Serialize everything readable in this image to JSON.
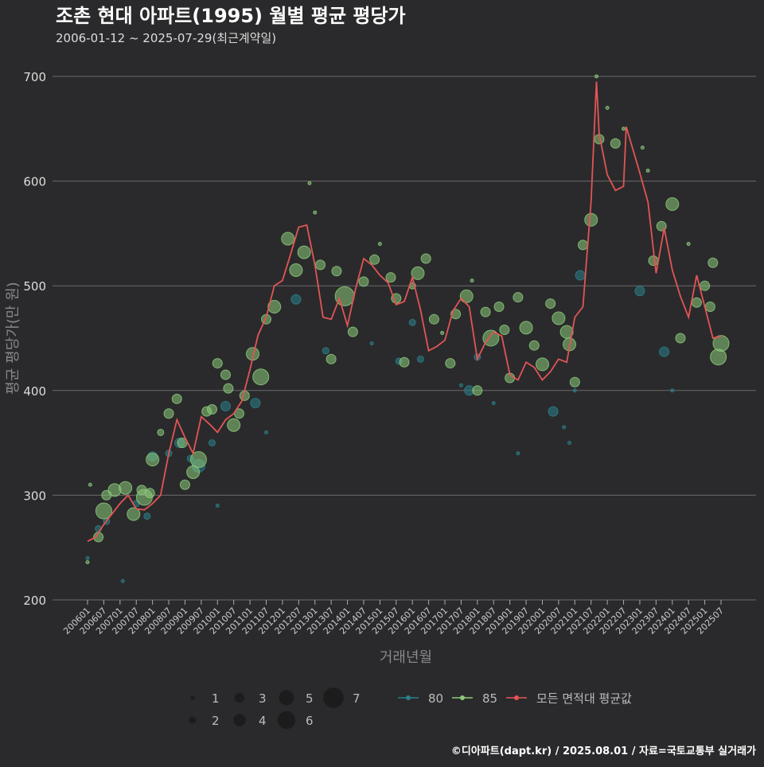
{
  "chart_data": {
    "type": "scatter",
    "title": "조촌 현대 아파트(1995) 월별 평균 평당가",
    "subtitle": "2006-01-12 ~ 2025-07-29(최근계약일)",
    "xlabel": "거래년월",
    "ylabel": "평균 평당가(만 원)",
    "ylim": [
      200,
      700
    ],
    "yticks": [
      200,
      300,
      400,
      500,
      600,
      700
    ],
    "xticks": [
      "200601",
      "200607",
      "200701",
      "200707",
      "200801",
      "200807",
      "200901",
      "200907",
      "201001",
      "201007",
      "201101",
      "201107",
      "201201",
      "201207",
      "201301",
      "201307",
      "201401",
      "201407",
      "201501",
      "201507",
      "201601",
      "201607",
      "201701",
      "201707",
      "201801",
      "201807",
      "201901",
      "201907",
      "202001",
      "202007",
      "202101",
      "202107",
      "202201",
      "202207",
      "202301",
      "202307",
      "202401",
      "202407",
      "202501",
      "202507"
    ],
    "legend": {
      "size_title": "",
      "sizes": [
        1,
        2,
        3,
        4,
        5,
        6,
        7
      ],
      "series": [
        {
          "name": "80",
          "color": "#2a7f8a"
        },
        {
          "name": "85",
          "color": "#8bc97a"
        },
        {
          "name": "모든 면적대 평균값",
          "color": "#e25555"
        }
      ]
    },
    "series": [
      {
        "name": "모든 면적대 평균값",
        "type": "line",
        "color": "#e25555",
        "points": [
          [
            "200601",
            256
          ],
          [
            "200604",
            260
          ],
          [
            "200607",
            272
          ],
          [
            "200701",
            292
          ],
          [
            "200704",
            300
          ],
          [
            "200707",
            287
          ],
          [
            "200710",
            286
          ],
          [
            "200801",
            292
          ],
          [
            "200804",
            300
          ],
          [
            "200807",
            340
          ],
          [
            "200810",
            372
          ],
          [
            "200901",
            355
          ],
          [
            "200904",
            340
          ],
          [
            "200907",
            375
          ],
          [
            "200910",
            368
          ],
          [
            "201001",
            360
          ],
          [
            "201004",
            372
          ],
          [
            "201007",
            378
          ],
          [
            "201010",
            390
          ],
          [
            "201101",
            420
          ],
          [
            "201104",
            453
          ],
          [
            "201107",
            470
          ],
          [
            "201110",
            500
          ],
          [
            "201201",
            505
          ],
          [
            "201204",
            530
          ],
          [
            "201207",
            556
          ],
          [
            "201210",
            558
          ],
          [
            "201301",
            520
          ],
          [
            "201304",
            470
          ],
          [
            "201307",
            468
          ],
          [
            "201310",
            488
          ],
          [
            "201401",
            462
          ],
          [
            "201404",
            497
          ],
          [
            "201407",
            526
          ],
          [
            "201410",
            520
          ],
          [
            "201501",
            510
          ],
          [
            "201504",
            503
          ],
          [
            "201507",
            482
          ],
          [
            "201510",
            485
          ],
          [
            "201601",
            508
          ],
          [
            "201604",
            477
          ],
          [
            "201607",
            438
          ],
          [
            "201610",
            442
          ],
          [
            "201701",
            448
          ],
          [
            "201704",
            476
          ],
          [
            "201707",
            488
          ],
          [
            "201710",
            480
          ],
          [
            "201801",
            430
          ],
          [
            "201804",
            446
          ],
          [
            "201807",
            456
          ],
          [
            "201810",
            452
          ],
          [
            "201901",
            415
          ],
          [
            "201904",
            410
          ],
          [
            "201907",
            427
          ],
          [
            "201910",
            422
          ],
          [
            "202001",
            410
          ],
          [
            "202004",
            418
          ],
          [
            "202007",
            430
          ],
          [
            "202010",
            427
          ],
          [
            "202101",
            470
          ],
          [
            "202104",
            480
          ],
          [
            "202107",
            580
          ],
          [
            "202109",
            695
          ],
          [
            "202110",
            645
          ],
          [
            "202201",
            606
          ],
          [
            "202204",
            591
          ],
          [
            "202207",
            595
          ],
          [
            "202208",
            652
          ],
          [
            "202301",
            608
          ],
          [
            "202304",
            580
          ],
          [
            "202307",
            512
          ],
          [
            "202310",
            555
          ],
          [
            "202401",
            515
          ],
          [
            "202404",
            490
          ],
          [
            "202407",
            470
          ],
          [
            "202410",
            510
          ],
          [
            "202501",
            480
          ],
          [
            "202504",
            450
          ],
          [
            "202507",
            452
          ]
        ]
      },
      {
        "name": "80",
        "type": "scatter",
        "color": "#2a7f8a",
        "points": [
          [
            "200601",
            240,
            1
          ],
          [
            "200605",
            268,
            2
          ],
          [
            "200608",
            275,
            2
          ],
          [
            "200702",
            218,
            1
          ],
          [
            "200707",
            292,
            2
          ],
          [
            "200711",
            280,
            2
          ],
          [
            "200801",
            337,
            3
          ],
          [
            "200807",
            340,
            2
          ],
          [
            "200811",
            350,
            3
          ],
          [
            "200903",
            335,
            2
          ],
          [
            "200906",
            328,
            4
          ],
          [
            "200911",
            350,
            2
          ],
          [
            "201001",
            290,
            1
          ],
          [
            "201004",
            385,
            3
          ],
          [
            "201103",
            388,
            3
          ],
          [
            "201107",
            360,
            1
          ],
          [
            "201206",
            487,
            3
          ],
          [
            "201305",
            438,
            2
          ],
          [
            "201410",
            445,
            1
          ],
          [
            "201508",
            428,
            2
          ],
          [
            "201601",
            465,
            2
          ],
          [
            "201604",
            430,
            2
          ],
          [
            "201707",
            405,
            1
          ],
          [
            "201710",
            400,
            3
          ],
          [
            "201801",
            432,
            2
          ],
          [
            "201807",
            388,
            1
          ],
          [
            "201904",
            340,
            1
          ],
          [
            "202005",
            380,
            3
          ],
          [
            "202009",
            365,
            1
          ],
          [
            "202011",
            350,
            1
          ],
          [
            "202101",
            400,
            1
          ],
          [
            "202103",
            510,
            3
          ],
          [
            "202301",
            495,
            3
          ],
          [
            "202310",
            437,
            3
          ],
          [
            "202401",
            400,
            1
          ]
        ]
      },
      {
        "name": "85",
        "type": "scatter",
        "color": "#8bc97a",
        "points": [
          [
            "200601",
            236,
            1
          ],
          [
            "200602",
            310,
            1
          ],
          [
            "200605",
            260,
            3
          ],
          [
            "200607",
            285,
            5
          ],
          [
            "200608",
            300,
            3
          ],
          [
            "200611",
            305,
            4
          ],
          [
            "200703",
            307,
            4
          ],
          [
            "200706",
            282,
            4
          ],
          [
            "200709",
            305,
            3
          ],
          [
            "200710",
            298,
            5
          ],
          [
            "200712",
            302,
            3
          ],
          [
            "200801",
            334,
            4
          ],
          [
            "200804",
            360,
            2
          ],
          [
            "200807",
            378,
            3
          ],
          [
            "200810",
            392,
            3
          ],
          [
            "200812",
            350,
            3
          ],
          [
            "200901",
            310,
            3
          ],
          [
            "200904",
            322,
            4
          ],
          [
            "200906",
            334,
            5
          ],
          [
            "200909",
            380,
            3
          ],
          [
            "200911",
            382,
            3
          ],
          [
            "201001",
            426,
            3
          ],
          [
            "201004",
            415,
            3
          ],
          [
            "201005",
            402,
            3
          ],
          [
            "201007",
            367,
            4
          ],
          [
            "201009",
            378,
            3
          ],
          [
            "201011",
            395,
            3
          ],
          [
            "201102",
            435,
            4
          ],
          [
            "201105",
            413,
            5
          ],
          [
            "201107",
            468,
            3
          ],
          [
            "201110",
            480,
            4
          ],
          [
            "201203",
            545,
            4
          ],
          [
            "201206",
            515,
            4
          ],
          [
            "201209",
            532,
            4
          ],
          [
            "201211",
            598,
            1
          ],
          [
            "201301",
            570,
            1
          ],
          [
            "201303",
            520,
            3
          ],
          [
            "201307",
            430,
            3
          ],
          [
            "201309",
            514,
            3
          ],
          [
            "201312",
            490,
            6
          ],
          [
            "201403",
            456,
            3
          ],
          [
            "201407",
            504,
            3
          ],
          [
            "201411",
            525,
            3
          ],
          [
            "201501",
            540,
            1
          ],
          [
            "201505",
            508,
            3
          ],
          [
            "201507",
            488,
            3
          ],
          [
            "201510",
            427,
            3
          ],
          [
            "201601",
            500,
            2
          ],
          [
            "201603",
            512,
            4
          ],
          [
            "201606",
            526,
            3
          ],
          [
            "201609",
            468,
            3
          ],
          [
            "201612",
            455,
            1
          ],
          [
            "201703",
            426,
            3
          ],
          [
            "201705",
            473,
            3
          ],
          [
            "201709",
            490,
            4
          ],
          [
            "201711",
            505,
            1
          ],
          [
            "201801",
            400,
            3
          ],
          [
            "201804",
            475,
            3
          ],
          [
            "201806",
            450,
            5
          ],
          [
            "201809",
            480,
            3
          ],
          [
            "201811",
            458,
            3
          ],
          [
            "201901",
            412,
            3
          ],
          [
            "201904",
            489,
            3
          ],
          [
            "201907",
            460,
            4
          ],
          [
            "201910",
            443,
            3
          ],
          [
            "202001",
            425,
            4
          ],
          [
            "202004",
            483,
            3
          ],
          [
            "202007",
            469,
            4
          ],
          [
            "202010",
            456,
            4
          ],
          [
            "202011",
            444,
            4
          ],
          [
            "202101",
            408,
            3
          ],
          [
            "202104",
            539,
            3
          ],
          [
            "202107",
            563,
            4
          ],
          [
            "202109",
            700,
            1
          ],
          [
            "202110",
            640,
            3
          ],
          [
            "202201",
            670,
            1
          ],
          [
            "202204",
            636,
            3
          ],
          [
            "202207",
            650,
            1
          ],
          [
            "202302",
            632,
            1
          ],
          [
            "202304",
            610,
            1
          ],
          [
            "202306",
            524,
            3
          ],
          [
            "202309",
            557,
            3
          ],
          [
            "202401",
            578,
            4
          ],
          [
            "202404",
            450,
            3
          ],
          [
            "202407",
            540,
            1
          ],
          [
            "202410",
            484,
            3
          ],
          [
            "202501",
            500,
            3
          ],
          [
            "202503",
            480,
            3
          ],
          [
            "202504",
            522,
            3
          ],
          [
            "202506",
            432,
            5
          ],
          [
            "202507",
            445,
            5
          ]
        ]
      }
    ]
  },
  "footer": "©디아파트(dapt.kr) / 2025.08.01 / 자료=국토교통부 실거래가"
}
